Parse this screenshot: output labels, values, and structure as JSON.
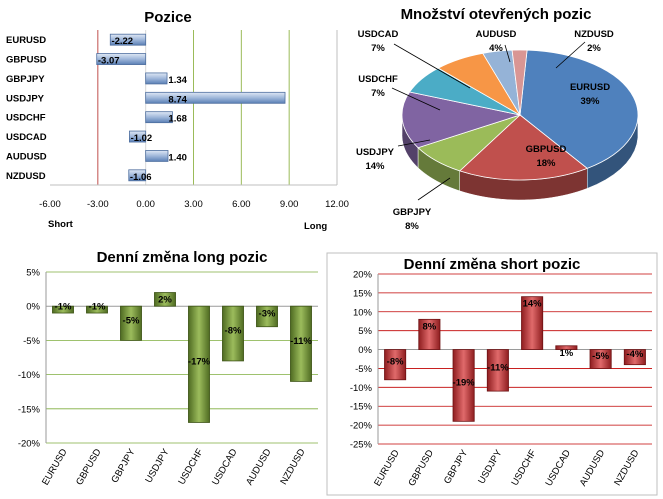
{
  "chart_data": [
    {
      "type": "bar",
      "orientation": "horizontal",
      "title": "Pozice",
      "categories": [
        "EURUSD",
        "GBPUSD",
        "GBPJPY",
        "USDJPY",
        "USDCHF",
        "USDCAD",
        "AUDUSD",
        "NZDUSD"
      ],
      "values": [
        -2.22,
        -3.07,
        1.34,
        8.74,
        1.68,
        -1.02,
        1.4,
        -1.06
      ],
      "value_labels": [
        "-2.22",
        "-3.07",
        "1.34",
        "8.74",
        "1.68",
        "-1.02",
        "1.40",
        "-1.06"
      ],
      "xlim": [
        -6,
        12
      ],
      "xticks": [
        "-6.00",
        "-3.00",
        "0.00",
        "3.00",
        "6.00",
        "9.00",
        "12.00"
      ],
      "short_label": "Short",
      "long_label": "Long",
      "bar_color": "#8eaad2",
      "grid": true
    },
    {
      "type": "pie",
      "title": "Množství otevřených pozic",
      "labels": [
        "EURUSD",
        "GBPUSD",
        "GBPJPY",
        "USDJPY",
        "USDCHF",
        "USDCAD",
        "AUDUSD",
        "NZDUSD"
      ],
      "values": [
        39,
        18,
        8,
        14,
        7,
        7,
        4,
        2
      ],
      "percent_labels": [
        "39%",
        "18%",
        "8%",
        "14%",
        "7%",
        "7%",
        "4%",
        "2%"
      ],
      "colors": [
        "#4f81bd",
        "#c0504d",
        "#9bbb59",
        "#8064a2",
        "#4bacc6",
        "#f79646",
        "#95b3d7",
        "#d99694"
      ]
    },
    {
      "type": "bar",
      "title": "Denní změna long pozic",
      "categories": [
        "EURUSD",
        "GBPUSD",
        "GBPJPY",
        "USDJPY",
        "USDCHF",
        "USDCAD",
        "AUDUSD",
        "NZDUSD"
      ],
      "values": [
        -1,
        -1,
        -5,
        2,
        -17,
        -8,
        -3,
        -11
      ],
      "value_labels": [
        "-1%",
        "-1%",
        "-5%",
        "2%",
        "-17%",
        "-8%",
        "-3%",
        "-11%"
      ],
      "ylim": [
        -20,
        5
      ],
      "yticks": [
        "5%",
        "0%",
        "-5%",
        "-10%",
        "-15%",
        "-20%"
      ],
      "bar_color": "#6f8f3a",
      "grid": true
    },
    {
      "type": "bar",
      "title": "Denní změna short pozic",
      "categories": [
        "EURUSD",
        "GBPUSD",
        "GBPJPY",
        "USDJPY",
        "USDCHF",
        "USDCAD",
        "AUDUSD",
        "NZDUSD"
      ],
      "values": [
        -8,
        8,
        -19,
        -11,
        14,
        1,
        -5,
        -4
      ],
      "value_labels": [
        "-8%",
        "8%",
        "-19%",
        "-11%",
        "14%",
        "1%",
        "-5%",
        "-4%"
      ],
      "ylim": [
        -25,
        20
      ],
      "yticks": [
        "20%",
        "15%",
        "10%",
        "5%",
        "0%",
        "-5%",
        "-10%",
        "-15%",
        "-20%",
        "-25%"
      ],
      "bar_color": "#c0393b",
      "grid": true
    }
  ]
}
